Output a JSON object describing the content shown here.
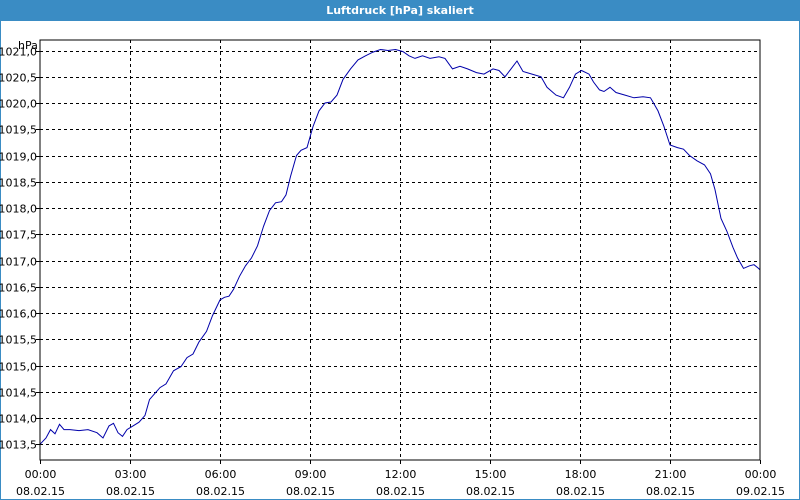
{
  "window": {
    "title": "Luftdruck [hPa] skaliert"
  },
  "chart_data": {
    "type": "line",
    "title": "Luftdruck [hPa] skaliert",
    "ylabel": "hPa",
    "xlabel": "",
    "ylim": [
      1013.2,
      1021.2
    ],
    "xlim_hours": [
      0,
      24
    ],
    "grid": true,
    "line_color": "#0000aa",
    "y_ticks": [
      "1013,5",
      "1014,0",
      "1014,5",
      "1015,0",
      "1015,5",
      "1016,0",
      "1016,5",
      "1017,0",
      "1017,5",
      "1018,0",
      "1018,5",
      "1019,0",
      "1019,5",
      "1020,0",
      "1020,5",
      "1021,0"
    ],
    "y_tick_values": [
      1013.5,
      1014.0,
      1014.5,
      1015.0,
      1015.5,
      1016.0,
      1016.5,
      1017.0,
      1017.5,
      1018.0,
      1018.5,
      1019.0,
      1019.5,
      1020.0,
      1020.5,
      1021.0
    ],
    "x_ticks": [
      {
        "time": "00:00",
        "date": "08.02.15"
      },
      {
        "time": "03:00",
        "date": "08.02.15"
      },
      {
        "time": "06:00",
        "date": "08.02.15"
      },
      {
        "time": "09:00",
        "date": "08.02.15"
      },
      {
        "time": "12:00",
        "date": "08.02.15"
      },
      {
        "time": "15:00",
        "date": "08.02.15"
      },
      {
        "time": "18:00",
        "date": "08.02.15"
      },
      {
        "time": "21:00",
        "date": "08.02.15"
      },
      {
        "time": "00:00",
        "date": "09.02.15"
      }
    ],
    "x_tick_hours": [
      0,
      3,
      6,
      9,
      12,
      15,
      18,
      21,
      24
    ],
    "series": [
      {
        "points": [
          [
            0.0,
            1013.5
          ],
          [
            0.2,
            1013.62
          ],
          [
            0.35,
            1013.78
          ],
          [
            0.5,
            1013.7
          ],
          [
            0.65,
            1013.88
          ],
          [
            0.8,
            1013.78
          ],
          [
            1.0,
            1013.78
          ],
          [
            1.3,
            1013.76
          ],
          [
            1.6,
            1013.78
          ],
          [
            1.9,
            1013.72
          ],
          [
            2.1,
            1013.62
          ],
          [
            2.3,
            1013.85
          ],
          [
            2.45,
            1013.9
          ],
          [
            2.6,
            1013.72
          ],
          [
            2.75,
            1013.65
          ],
          [
            2.9,
            1013.78
          ],
          [
            3.1,
            1013.85
          ],
          [
            3.3,
            1013.92
          ],
          [
            3.5,
            1014.05
          ],
          [
            3.65,
            1014.35
          ],
          [
            3.8,
            1014.45
          ],
          [
            4.0,
            1014.58
          ],
          [
            4.2,
            1014.65
          ],
          [
            4.45,
            1014.9
          ],
          [
            4.7,
            1014.98
          ],
          [
            4.9,
            1015.15
          ],
          [
            5.1,
            1015.22
          ],
          [
            5.3,
            1015.45
          ],
          [
            5.55,
            1015.65
          ],
          [
            5.75,
            1015.95
          ],
          [
            6.0,
            1016.25
          ],
          [
            6.15,
            1016.3
          ],
          [
            6.3,
            1016.32
          ],
          [
            6.45,
            1016.45
          ],
          [
            6.65,
            1016.7
          ],
          [
            6.85,
            1016.9
          ],
          [
            7.05,
            1017.05
          ],
          [
            7.25,
            1017.28
          ],
          [
            7.45,
            1017.65
          ],
          [
            7.65,
            1017.95
          ],
          [
            7.85,
            1018.1
          ],
          [
            8.05,
            1018.12
          ],
          [
            8.2,
            1018.25
          ],
          [
            8.35,
            1018.6
          ],
          [
            8.55,
            1019.0
          ],
          [
            8.7,
            1019.1
          ],
          [
            8.9,
            1019.15
          ],
          [
            9.1,
            1019.55
          ],
          [
            9.3,
            1019.85
          ],
          [
            9.5,
            1020.0
          ],
          [
            9.7,
            1020.02
          ],
          [
            9.9,
            1020.15
          ],
          [
            10.1,
            1020.45
          ],
          [
            10.35,
            1020.65
          ],
          [
            10.6,
            1020.82
          ],
          [
            10.85,
            1020.9
          ],
          [
            11.1,
            1020.97
          ],
          [
            11.35,
            1021.02
          ],
          [
            11.6,
            1021.0
          ],
          [
            11.85,
            1021.02
          ],
          [
            12.1,
            1020.98
          ],
          [
            12.3,
            1020.9
          ],
          [
            12.5,
            1020.85
          ],
          [
            12.75,
            1020.9
          ],
          [
            13.0,
            1020.85
          ],
          [
            13.3,
            1020.88
          ],
          [
            13.5,
            1020.85
          ],
          [
            13.75,
            1020.65
          ],
          [
            14.0,
            1020.7
          ],
          [
            14.25,
            1020.65
          ],
          [
            14.55,
            1020.58
          ],
          [
            14.8,
            1020.55
          ],
          [
            15.1,
            1020.65
          ],
          [
            15.3,
            1020.62
          ],
          [
            15.5,
            1020.5
          ],
          [
            15.7,
            1020.65
          ],
          [
            15.9,
            1020.8
          ],
          [
            16.1,
            1020.6
          ],
          [
            16.4,
            1020.55
          ],
          [
            16.7,
            1020.5
          ],
          [
            16.9,
            1020.3
          ],
          [
            17.2,
            1020.15
          ],
          [
            17.45,
            1020.1
          ],
          [
            17.65,
            1020.3
          ],
          [
            17.85,
            1020.55
          ],
          [
            18.05,
            1020.62
          ],
          [
            18.3,
            1020.55
          ],
          [
            18.45,
            1020.4
          ],
          [
            18.65,
            1020.25
          ],
          [
            18.8,
            1020.22
          ],
          [
            19.0,
            1020.3
          ],
          [
            19.2,
            1020.2
          ],
          [
            19.5,
            1020.15
          ],
          [
            19.8,
            1020.1
          ],
          [
            20.1,
            1020.12
          ],
          [
            20.35,
            1020.1
          ],
          [
            20.6,
            1019.85
          ],
          [
            20.8,
            1019.55
          ],
          [
            21.0,
            1019.2
          ],
          [
            21.25,
            1019.15
          ],
          [
            21.45,
            1019.12
          ],
          [
            21.65,
            1019.0
          ],
          [
            21.9,
            1018.9
          ],
          [
            22.15,
            1018.82
          ],
          [
            22.35,
            1018.65
          ],
          [
            22.5,
            1018.35
          ],
          [
            22.7,
            1017.8
          ],
          [
            22.9,
            1017.55
          ],
          [
            23.1,
            1017.25
          ],
          [
            23.25,
            1017.05
          ],
          [
            23.45,
            1016.85
          ],
          [
            23.65,
            1016.9
          ],
          [
            23.8,
            1016.92
          ],
          [
            23.95,
            1016.85
          ],
          [
            24.0,
            1016.82
          ]
        ]
      }
    ]
  }
}
